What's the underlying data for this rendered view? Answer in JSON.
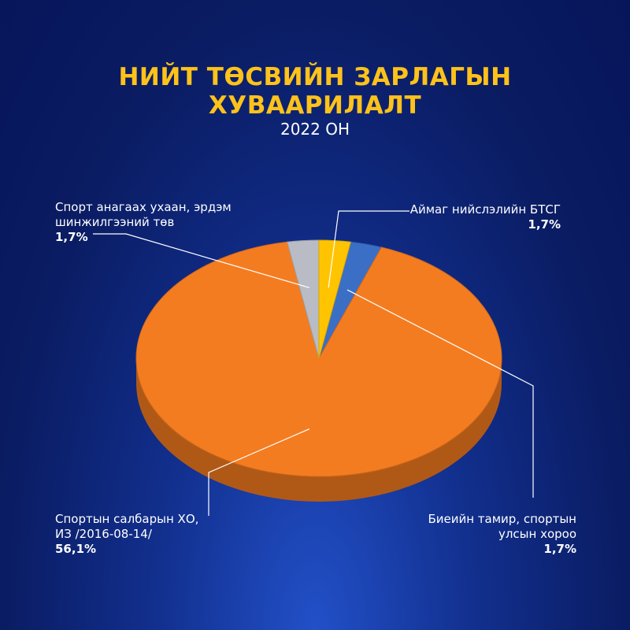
{
  "chart_data": {
    "type": "pie3d",
    "title": "НИЙТ ТӨСВИЙН ЗАРЛАГЫН ХУВААРИЛАЛТ",
    "subtitle": "2022 ОН",
    "categories": [
      "Биеийн тамир, спортын улсын хороо",
      "Спортын салбарын ХО, ИЗ /2016-08-14/",
      "Спорт анагаах ухаан, эрдэм шинжилгээний төв",
      "Аймаг нийслэлийн БТСГ"
    ],
    "values": [
      1.7,
      56.1,
      1.7,
      1.7
    ],
    "value_labels": [
      "1,7%",
      "56,1%",
      "1,7%",
      "1,7%"
    ],
    "colors": [
      "#3b6fc6",
      "#f47c20",
      "#b9bcc4",
      "#ffc400"
    ]
  }
}
